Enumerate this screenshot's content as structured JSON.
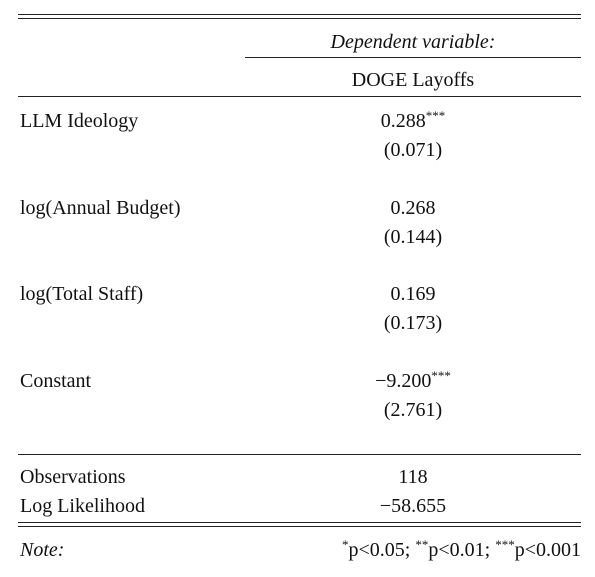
{
  "header": {
    "dependent_variable": "Dependent variable:",
    "model": "DOGE Layoffs"
  },
  "rows": [
    {
      "label": "LLM Ideology",
      "estimate": "0.288",
      "stars": "***",
      "se": "(0.071)"
    },
    {
      "label": "log(Annual Budget)",
      "estimate": "0.268",
      "stars": null,
      "se": "(0.144)"
    },
    {
      "label": "log(Total Staff)",
      "estimate": "0.169",
      "stars": null,
      "se": "(0.173)"
    },
    {
      "label": "Constant",
      "estimate": "−9.200",
      "stars": "***",
      "se": "(2.761)"
    }
  ],
  "stats": [
    {
      "label": "Observations",
      "value": "118"
    },
    {
      "label": "Log Likelihood",
      "value": "−58.655"
    }
  ],
  "note": {
    "label": "Note:",
    "parts": [
      {
        "stars": "*",
        "text": "p<0.05;"
      },
      {
        "stars": "**",
        "text": "p<0.01;"
      },
      {
        "stars": "***",
        "text": "p<0.001"
      }
    ]
  }
}
